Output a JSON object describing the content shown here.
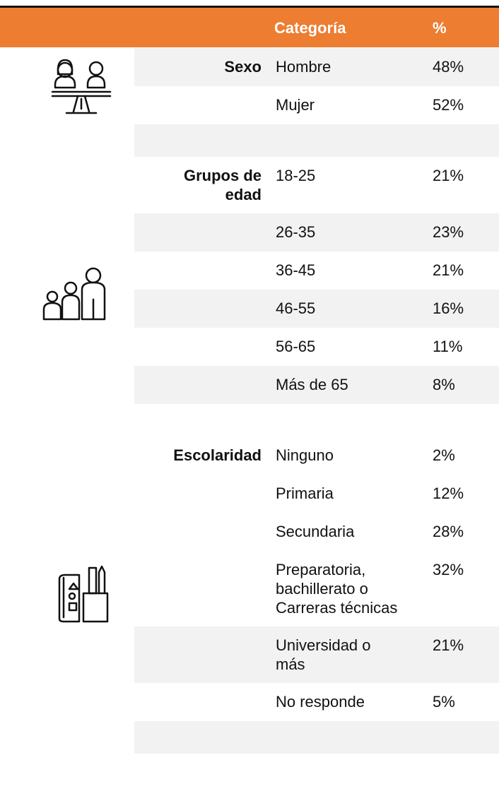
{
  "header": {
    "category": "Categoría",
    "percent": "%"
  },
  "sections": [
    {
      "label": "Sexo",
      "rows": [
        {
          "category": "Hombre",
          "percent": "48%"
        },
        {
          "category": "Mujer",
          "percent": "52%"
        }
      ]
    },
    {
      "label": "Grupos de edad",
      "rows": [
        {
          "category": "18-25",
          "percent": "21%"
        },
        {
          "category": "26-35",
          "percent": "23%"
        },
        {
          "category": "36-45",
          "percent": "21%"
        },
        {
          "category": "46-55",
          "percent": "16%"
        },
        {
          "category": "56-65",
          "percent": "11%"
        },
        {
          "category": "Más de 65",
          "percent": "8%"
        }
      ]
    },
    {
      "label": "Escolaridad",
      "rows": [
        {
          "category": "Ninguno",
          "percent": "2%"
        },
        {
          "category": "Primaria",
          "percent": "12%"
        },
        {
          "category": "Secundaria",
          "percent": "28%"
        },
        {
          "category": "Preparatoria, bachillerato o Carreras técnicas",
          "percent": "32%"
        },
        {
          "category": "Universidad o más",
          "percent": "21%"
        },
        {
          "category": "No responde",
          "percent": "5%"
        }
      ]
    }
  ]
}
